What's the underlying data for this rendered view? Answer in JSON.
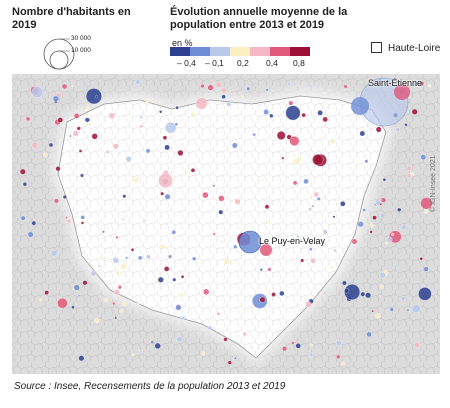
{
  "legend": {
    "population_title": "Nombre d'habitants en 2019",
    "population_values": [
      "30 000",
      "10 000"
    ],
    "evolution_title": "Évolution annuelle moyenne de la population entre 2013 et 2019",
    "unit": "en %",
    "classes": [
      {
        "color": "#2d3f8f"
      },
      {
        "color": "#6f8dd6"
      },
      {
        "color": "#b9c9ec"
      },
      {
        "color": "#fbefc4"
      },
      {
        "color": "#f4b8c3"
      },
      {
        "color": "#e0587a"
      },
      {
        "color": "#9c1037"
      }
    ],
    "ticks": [
      "– 0,4",
      "– 0,1",
      "0,2",
      "0,4",
      "0,8"
    ],
    "boundary_label": "Haute-Loire"
  },
  "map": {
    "cities": [
      {
        "name": "Saint-Étienne"
      },
      {
        "name": "Le Puy-en-Velay"
      }
    ]
  },
  "source": "Source : Insee, Recensements de la population 2013 et 2019",
  "copyright": "© IGN-Insee 2021"
}
